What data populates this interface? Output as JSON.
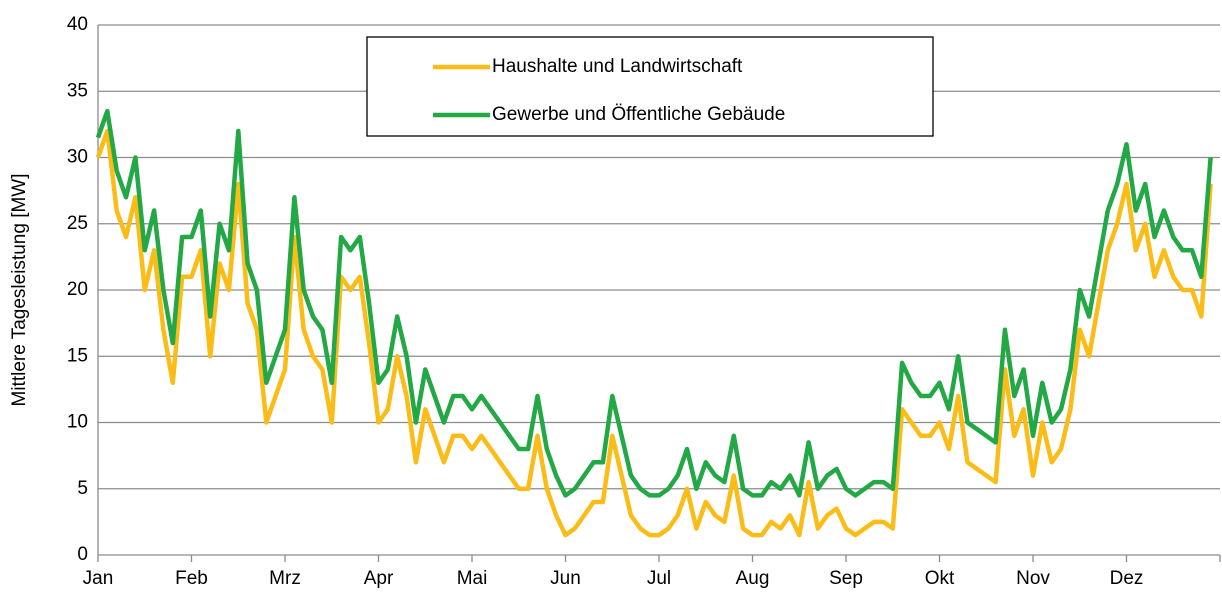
{
  "chart_data": {
    "type": "line",
    "y_label": "Mittlere Tagesleistung  [MW]",
    "categories": [
      "Jan",
      null,
      null,
      null,
      null,
      null,
      null,
      null,
      null,
      null,
      "Feb",
      null,
      null,
      null,
      null,
      null,
      null,
      null,
      null,
      null,
      "Mrz",
      null,
      null,
      null,
      null,
      null,
      null,
      null,
      null,
      null,
      "Apr",
      null,
      null,
      null,
      null,
      null,
      null,
      null,
      null,
      null,
      "Mai",
      null,
      null,
      null,
      null,
      null,
      null,
      null,
      null,
      null,
      "Jun",
      null,
      null,
      null,
      null,
      null,
      null,
      null,
      null,
      null,
      "Jul",
      null,
      null,
      null,
      null,
      null,
      null,
      null,
      null,
      null,
      "Aug",
      null,
      null,
      null,
      null,
      null,
      null,
      null,
      null,
      null,
      "Sep",
      null,
      null,
      null,
      null,
      null,
      null,
      null,
      null,
      null,
      "Okt",
      null,
      null,
      null,
      null,
      null,
      null,
      null,
      null,
      null,
      "Nov",
      null,
      null,
      null,
      null,
      null,
      null,
      null,
      null,
      null,
      "Dez",
      null,
      null,
      null,
      null,
      null,
      null,
      null,
      null,
      null
    ],
    "series": [
      {
        "name": "Haushalte und Landwirtschaft",
        "color": "#fbbc17",
        "values": [
          30,
          32,
          26,
          24,
          27,
          20,
          23,
          17,
          13,
          21,
          21,
          23,
          15,
          22,
          20,
          28,
          19,
          17,
          10,
          12,
          14,
          24,
          17,
          15,
          14,
          10,
          21,
          20,
          21,
          16,
          10,
          11,
          15,
          12,
          7,
          11,
          9,
          7,
          9,
          9,
          8,
          9,
          8,
          7,
          6,
          5,
          5,
          9,
          5,
          3,
          1.5,
          2,
          3,
          4,
          4,
          9,
          6,
          3,
          2,
          1.5,
          1.5,
          2,
          3,
          5,
          2,
          4,
          3,
          2.5,
          6,
          2,
          1.5,
          1.5,
          2.5,
          2,
          3,
          1.5,
          5.5,
          2,
          3,
          3.5,
          2,
          1.5,
          2,
          2.5,
          2.5,
          2,
          11,
          10,
          9,
          9,
          10,
          8,
          12,
          7,
          6.5,
          6,
          5.5,
          14,
          9,
          11,
          6,
          10,
          7,
          8,
          11,
          17,
          15,
          19,
          23,
          25,
          28,
          23,
          25,
          21,
          23,
          21,
          20,
          20,
          18,
          28
        ]
      },
      {
        "name": "Gewerbe und Öffentliche Gebäude",
        "color": "#22a845",
        "values": [
          31.5,
          33.5,
          29,
          27,
          30,
          23,
          26,
          20,
          16,
          24,
          24,
          26,
          18,
          25,
          23,
          32,
          22,
          20,
          13,
          15,
          17,
          27,
          20,
          18,
          17,
          13,
          24,
          23,
          24,
          19,
          13,
          14,
          18,
          15,
          10,
          14,
          12,
          10,
          12,
          12,
          11,
          12,
          11,
          10,
          9,
          8,
          8,
          12,
          8,
          6,
          4.5,
          5,
          6,
          7,
          7,
          12,
          9,
          6,
          5,
          4.5,
          4.5,
          5,
          6,
          8,
          5,
          7,
          6,
          5.5,
          9,
          5,
          4.5,
          4.5,
          5.5,
          5,
          6,
          4.5,
          8.5,
          5,
          6,
          6.5,
          5,
          4.5,
          5,
          5.5,
          5.5,
          5,
          14.5,
          13,
          12,
          12,
          13,
          11,
          15,
          10,
          9.5,
          9,
          8.5,
          17,
          12,
          14,
          9,
          13,
          10,
          11,
          14,
          20,
          18,
          22,
          26,
          28,
          31,
          26,
          28,
          24,
          26,
          24,
          23,
          23,
          21,
          30
        ]
      }
    ],
    "ylim": [
      0,
      40
    ],
    "yticks": [
      0,
      5,
      10,
      15,
      20,
      25,
      30,
      35,
      40
    ],
    "grid": true
  }
}
